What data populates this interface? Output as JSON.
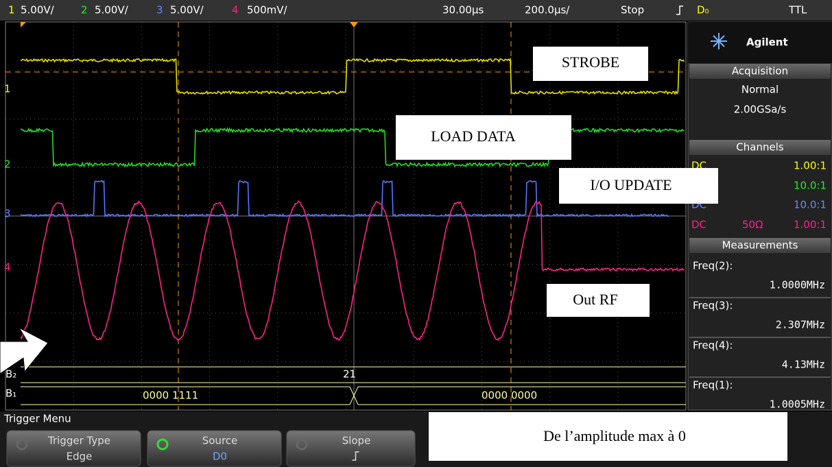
{
  "top_bar": {
    "channels": [
      {
        "number": "1",
        "scale": "5.00V/"
      },
      {
        "number": "2",
        "scale": "5.00V/"
      },
      {
        "number": "3",
        "scale": "5.00V/"
      },
      {
        "number": "4",
        "scale": "500mV/"
      }
    ],
    "delay": "30.00µs",
    "timebase": "200.0µs/",
    "run_state": "Stop",
    "trigger_source": "D₀",
    "trigger_level": "TTL"
  },
  "channel_markers": [
    "1",
    "2",
    "3",
    "4"
  ],
  "sidebar": {
    "brand": "Agilent",
    "acquisition": {
      "title": "Acquisition",
      "mode": "Normal",
      "rate": "2.00GSa/s"
    },
    "channels": {
      "title": "Channels",
      "rows": [
        {
          "coupling": "DC",
          "probe": "1.00:1"
        },
        {
          "probe": "10.0:1"
        },
        {
          "coupling": "DC",
          "probe": "10.0:1"
        },
        {
          "coupling": "DC",
          "impedance": "50Ω",
          "probe": "1.00:1"
        }
      ]
    },
    "measurements": {
      "title": "Measurements",
      "items": [
        {
          "label": "Freq(2):",
          "value": "1.0000MHz"
        },
        {
          "label": "Freq(3):",
          "value": "2.307MHz"
        },
        {
          "label": "Freq(4):",
          "value": "4.13MHz"
        },
        {
          "label": "Freq(1):",
          "value": "1.0005MHz"
        }
      ]
    }
  },
  "bus": {
    "labels": [
      "B₂",
      "B₁"
    ],
    "b2_value": "21",
    "b1_values": [
      "0000 1111",
      "0000 0000"
    ]
  },
  "footer": {
    "menu_title": "Trigger Menu",
    "softkeys": [
      {
        "label": "Trigger Type",
        "value": "Edge"
      },
      {
        "label": "Source",
        "value": "D0"
      },
      {
        "label": "Slope"
      }
    ]
  },
  "annotations": [
    "STROBE",
    "LOAD DATA",
    "I/O UPDATE",
    "Out RF",
    "De l’amplitude max à  0"
  ]
}
